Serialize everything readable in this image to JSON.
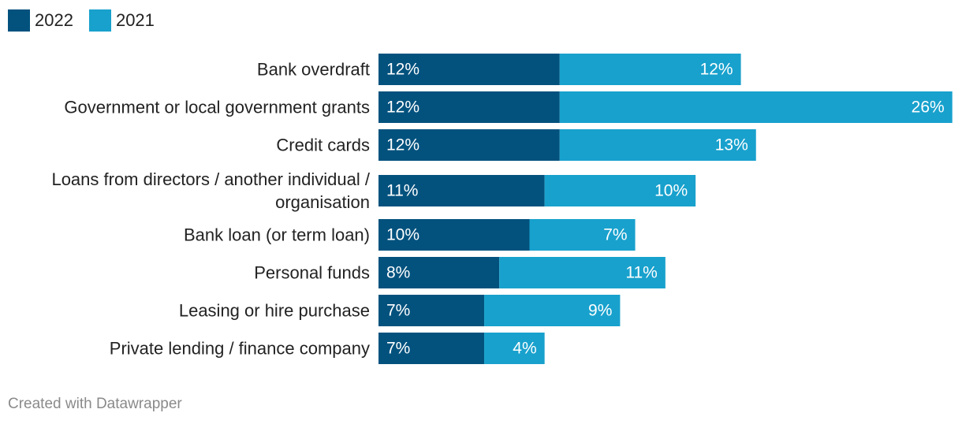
{
  "chart_data": {
    "type": "bar",
    "orientation": "horizontal",
    "stacked": true,
    "categories": [
      [
        "Bank overdraft"
      ],
      [
        "Government or local government grants"
      ],
      [
        "Credit cards"
      ],
      [
        "Loans from directors / another individual /",
        "organisation"
      ],
      [
        "Bank loan (or term loan)"
      ],
      [
        "Personal funds"
      ],
      [
        "Leasing or hire purchase"
      ],
      [
        "Private lending / finance company"
      ]
    ],
    "series": [
      {
        "name": "2022",
        "color": "#03527e",
        "values": [
          12,
          12,
          12,
          11,
          10,
          8,
          7,
          7
        ]
      },
      {
        "name": "2021",
        "color": "#18a1cd",
        "values": [
          12,
          26,
          13,
          10,
          7,
          11,
          9,
          4
        ]
      }
    ],
    "value_suffix": "%",
    "xlim": [
      0,
      38
    ],
    "legend_position": "top-left",
    "grid": false
  },
  "legend": [
    {
      "label": "2022",
      "color": "#03527e"
    },
    {
      "label": "2021",
      "color": "#18a1cd"
    }
  ],
  "footer": "Created with Datawrapper"
}
